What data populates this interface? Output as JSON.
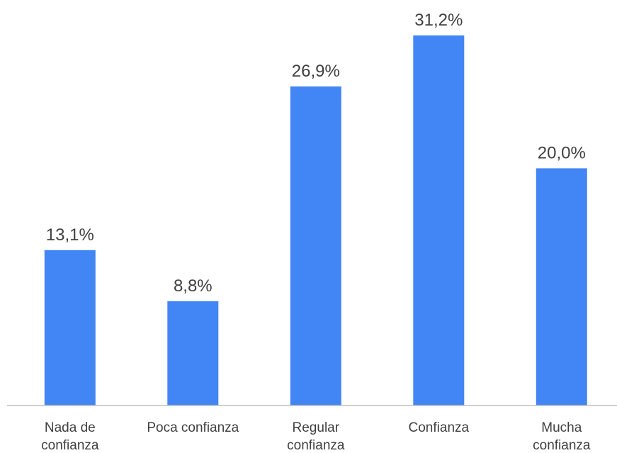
{
  "chart_data": {
    "type": "bar",
    "categories": [
      [
        "Nada de",
        "confianza"
      ],
      [
        "Poca confianza"
      ],
      [
        "Regular",
        "confianza"
      ],
      [
        "Confianza"
      ],
      [
        "Mucha",
        "confianza"
      ]
    ],
    "values": [
      13.1,
      8.8,
      26.9,
      31.2,
      20.0
    ],
    "value_labels": [
      "13,1%",
      "8,8%",
      "26,9%",
      "31,2%",
      "20,0%"
    ],
    "ylim": [
      0,
      31.2
    ],
    "grid": false,
    "legend": "none",
    "bar_color": "#4285F4",
    "axis_color": "#BFBFBF"
  }
}
